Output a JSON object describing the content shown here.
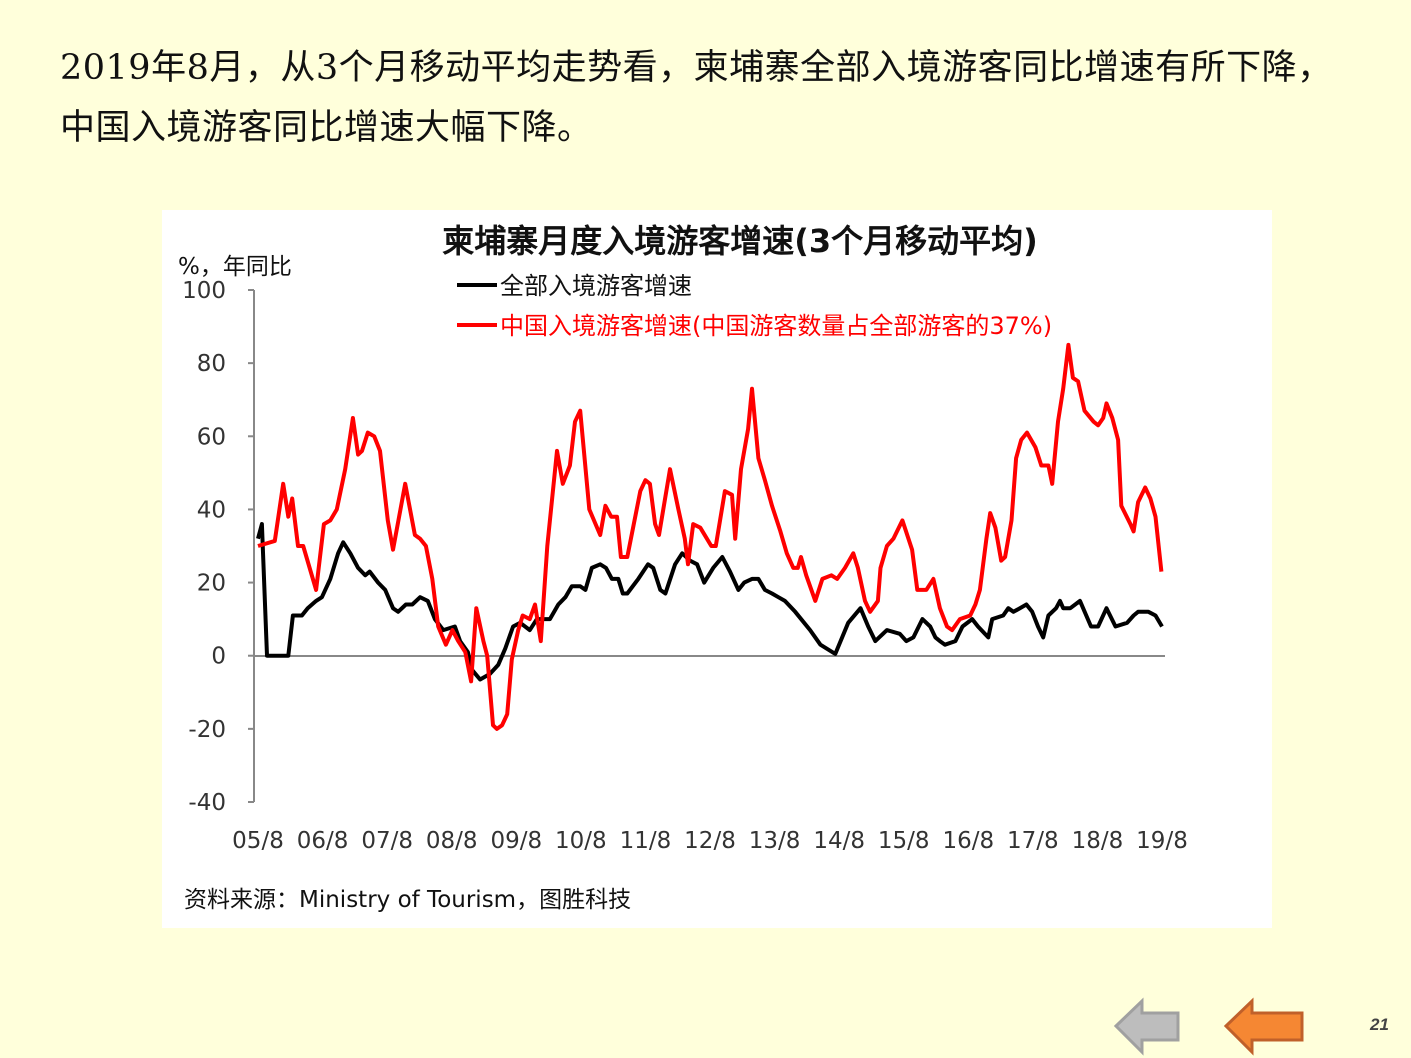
{
  "headline": "2019年8月，从3个月移动平均走势看，柬埔寨全部入境游客同比增速有所下降，中国入境游客同比增速大幅下降。",
  "source": "资料来源：Ministry of Tourism，图胜科技",
  "page_number": "21",
  "nav": {
    "prev_color": "#BDBDBD",
    "back_color": "#F58733"
  },
  "chart_data": {
    "type": "line",
    "title": "柬埔寨月度入境游客增速(3个月移动平均)",
    "ylabel": "%，年同比",
    "xlabel": "",
    "ylim": [
      -40,
      100
    ],
    "yticks": [
      "100",
      "80",
      "60",
      "40",
      "20",
      "0",
      "-20",
      "-40"
    ],
    "ytick_values": [
      100,
      80,
      60,
      40,
      20,
      0,
      -20,
      -40
    ],
    "xticks": [
      "05/8",
      "06/8",
      "07/8",
      "08/8",
      "09/8",
      "10/8",
      "11/8",
      "12/8",
      "13/8",
      "14/8",
      "15/8",
      "16/8",
      "17/8",
      "18/8",
      "19/8"
    ],
    "xlim": [
      2005.58,
      2019.58
    ],
    "grid": false,
    "legend_position": "top",
    "series": [
      {
        "name": "全部入境游客增速",
        "color": "#000000",
        "x": [
          2005.58,
          2005.64,
          2005.72,
          2006.05,
          2006.12,
          2006.26,
          2006.35,
          2006.48,
          2006.57,
          2006.7,
          2006.82,
          2006.9,
          2007.01,
          2007.13,
          2007.24,
          2007.31,
          2007.44,
          2007.55,
          2007.67,
          2007.75,
          2007.87,
          2007.97,
          2008.09,
          2008.21,
          2008.32,
          2008.45,
          2008.63,
          2008.71,
          2008.83,
          2008.9,
          2009.02,
          2009.17,
          2009.3,
          2009.41,
          2009.53,
          2009.64,
          2009.79,
          2009.9,
          2010.1,
          2010.23,
          2010.34,
          2010.44,
          2010.57,
          2010.65,
          2010.75,
          2010.88,
          2010.97,
          2011.06,
          2011.16,
          2011.23,
          2011.3,
          2011.47,
          2011.62,
          2011.7,
          2011.81,
          2011.89,
          2012.04,
          2012.15,
          2012.27,
          2012.38,
          2012.49,
          2012.63,
          2012.77,
          2012.89,
          2013.02,
          2013.11,
          2013.23,
          2013.33,
          2013.43,
          2013.54,
          2013.64,
          2013.74,
          2013.9,
          2014.13,
          2014.29,
          2014.52,
          2014.72,
          2014.91,
          2015.03,
          2015.14,
          2015.32,
          2015.52,
          2015.62,
          2015.73,
          2015.87,
          2015.99,
          2016.07,
          2016.14,
          2016.22,
          2016.38,
          2016.49,
          2016.64,
          2016.73,
          2016.89,
          2016.95,
          2017.12,
          2017.2,
          2017.28,
          2017.38,
          2017.48,
          2017.57,
          2017.66,
          2017.74,
          2017.82,
          2017.94,
          2018.0,
          2018.05,
          2018.16,
          2018.31,
          2018.48,
          2018.59,
          2018.72,
          2018.86,
          2019.04,
          2019.14,
          2019.21,
          2019.37,
          2019.48,
          2019.58
        ],
        "values": [
          32,
          36,
          0,
          0,
          11,
          11,
          13,
          15,
          16,
          21,
          28,
          31,
          28,
          24,
          22,
          23,
          20,
          18,
          13,
          12,
          14,
          14,
          16,
          15,
          10,
          7,
          8,
          4,
          1,
          -4,
          -6.5,
          -5,
          -2.5,
          2,
          8,
          9,
          7,
          10,
          10,
          14,
          16,
          19,
          19,
          18,
          24,
          25,
          24,
          21,
          21,
          17,
          17,
          21,
          25,
          24,
          18,
          17,
          25,
          28,
          26,
          25,
          20,
          24,
          27,
          23,
          18,
          20,
          21,
          21,
          18,
          17,
          16,
          15,
          12,
          7,
          3,
          0.5,
          9,
          13,
          8,
          4,
          7,
          6,
          4,
          5,
          10,
          8,
          5,
          4,
          3,
          4,
          8,
          10,
          8,
          5,
          10,
          11,
          13,
          12,
          13,
          14,
          12,
          8,
          5,
          11,
          13,
          15,
          13,
          13,
          15,
          8,
          8,
          13,
          8,
          9,
          11,
          12,
          12,
          11,
          8
        ]
      },
      {
        "name": "中国入境游客增速(中国游客数量占全部游客的37%)",
        "color": "#FF0000",
        "x": [
          2005.58,
          2005.84,
          2005.97,
          2006.05,
          2006.11,
          2006.2,
          2006.28,
          2006.48,
          2006.6,
          2006.7,
          2006.8,
          2006.93,
          2007.05,
          2007.13,
          2007.19,
          2007.28,
          2007.38,
          2007.47,
          2007.59,
          2007.67,
          2007.86,
          2008.01,
          2008.09,
          2008.18,
          2008.28,
          2008.37,
          2008.49,
          2008.59,
          2008.68,
          2008.79,
          2008.88,
          2008.96,
          2009.07,
          2009.13,
          2009.22,
          2009.28,
          2009.36,
          2009.44,
          2009.51,
          2009.61,
          2009.68,
          2009.79,
          2009.87,
          2009.96,
          2010.06,
          2010.21,
          2010.3,
          2010.41,
          2010.49,
          2010.57,
          2010.71,
          2010.88,
          2010.96,
          2011.05,
          2011.14,
          2011.2,
          2011.3,
          2011.5,
          2011.58,
          2011.65,
          2011.73,
          2011.79,
          2011.96,
          2012.09,
          2012.19,
          2012.24,
          2012.32,
          2012.43,
          2012.6,
          2012.67,
          2012.81,
          2012.92,
          2012.97,
          2013.06,
          2013.17,
          2013.23,
          2013.33,
          2013.43,
          2013.54,
          2013.67,
          2013.77,
          2013.87,
          2013.94,
          2013.99,
          2014.07,
          2014.21,
          2014.32,
          2014.46,
          2014.55,
          2014.67,
          2014.8,
          2014.87,
          2014.98,
          2015.06,
          2015.18,
          2015.22,
          2015.32,
          2015.42,
          2015.56,
          2015.71,
          2015.79,
          2015.93,
          2016.04,
          2016.14,
          2016.25,
          2016.33,
          2016.45,
          2016.61,
          2016.69,
          2016.76,
          2016.86,
          2016.92,
          2017.0,
          2017.09,
          2017.15,
          2017.25,
          2017.32,
          2017.4,
          2017.49,
          2017.62,
          2017.71,
          2017.82,
          2017.88,
          2017.97,
          2018.05,
          2018.13,
          2018.2,
          2018.28,
          2018.38,
          2018.52,
          2018.59,
          2018.67,
          2018.72,
          2018.81,
          2018.9,
          2018.95,
          2019.09,
          2019.14,
          2019.21,
          2019.32,
          2019.4,
          2019.48,
          2019.57
        ],
        "values": [
          30,
          31.4,
          47,
          38,
          43,
          30,
          30,
          18,
          36,
          37,
          40,
          51,
          65,
          55,
          56,
          61,
          60,
          56,
          37,
          29,
          47,
          33,
          32,
          30,
          21,
          8,
          3,
          7,
          4,
          1,
          -7,
          13,
          4,
          0,
          -19,
          -20,
          -19,
          -16,
          -1,
          7,
          11,
          10,
          14,
          4,
          30,
          56,
          47,
          52,
          64,
          67,
          40,
          33,
          41,
          38,
          38,
          27,
          27,
          45,
          48,
          47,
          36,
          33,
          51,
          40,
          32,
          25,
          36,
          35,
          30,
          30,
          45,
          44,
          32,
          51,
          62,
          73,
          54,
          48,
          41,
          34,
          28,
          24,
          24,
          27,
          22,
          15,
          21,
          22,
          21,
          24,
          28,
          24,
          15,
          12,
          15,
          24,
          30,
          32,
          37,
          29,
          18,
          18,
          21,
          13,
          8,
          7,
          10,
          11,
          14,
          18,
          32,
          39,
          35,
          26,
          27,
          37,
          54,
          59,
          61,
          57,
          52,
          52,
          47,
          64,
          73,
          85,
          76,
          75,
          67,
          64,
          63,
          65,
          69,
          65,
          59,
          41,
          36,
          34,
          42,
          46,
          43,
          38,
          23
        ]
      }
    ]
  }
}
